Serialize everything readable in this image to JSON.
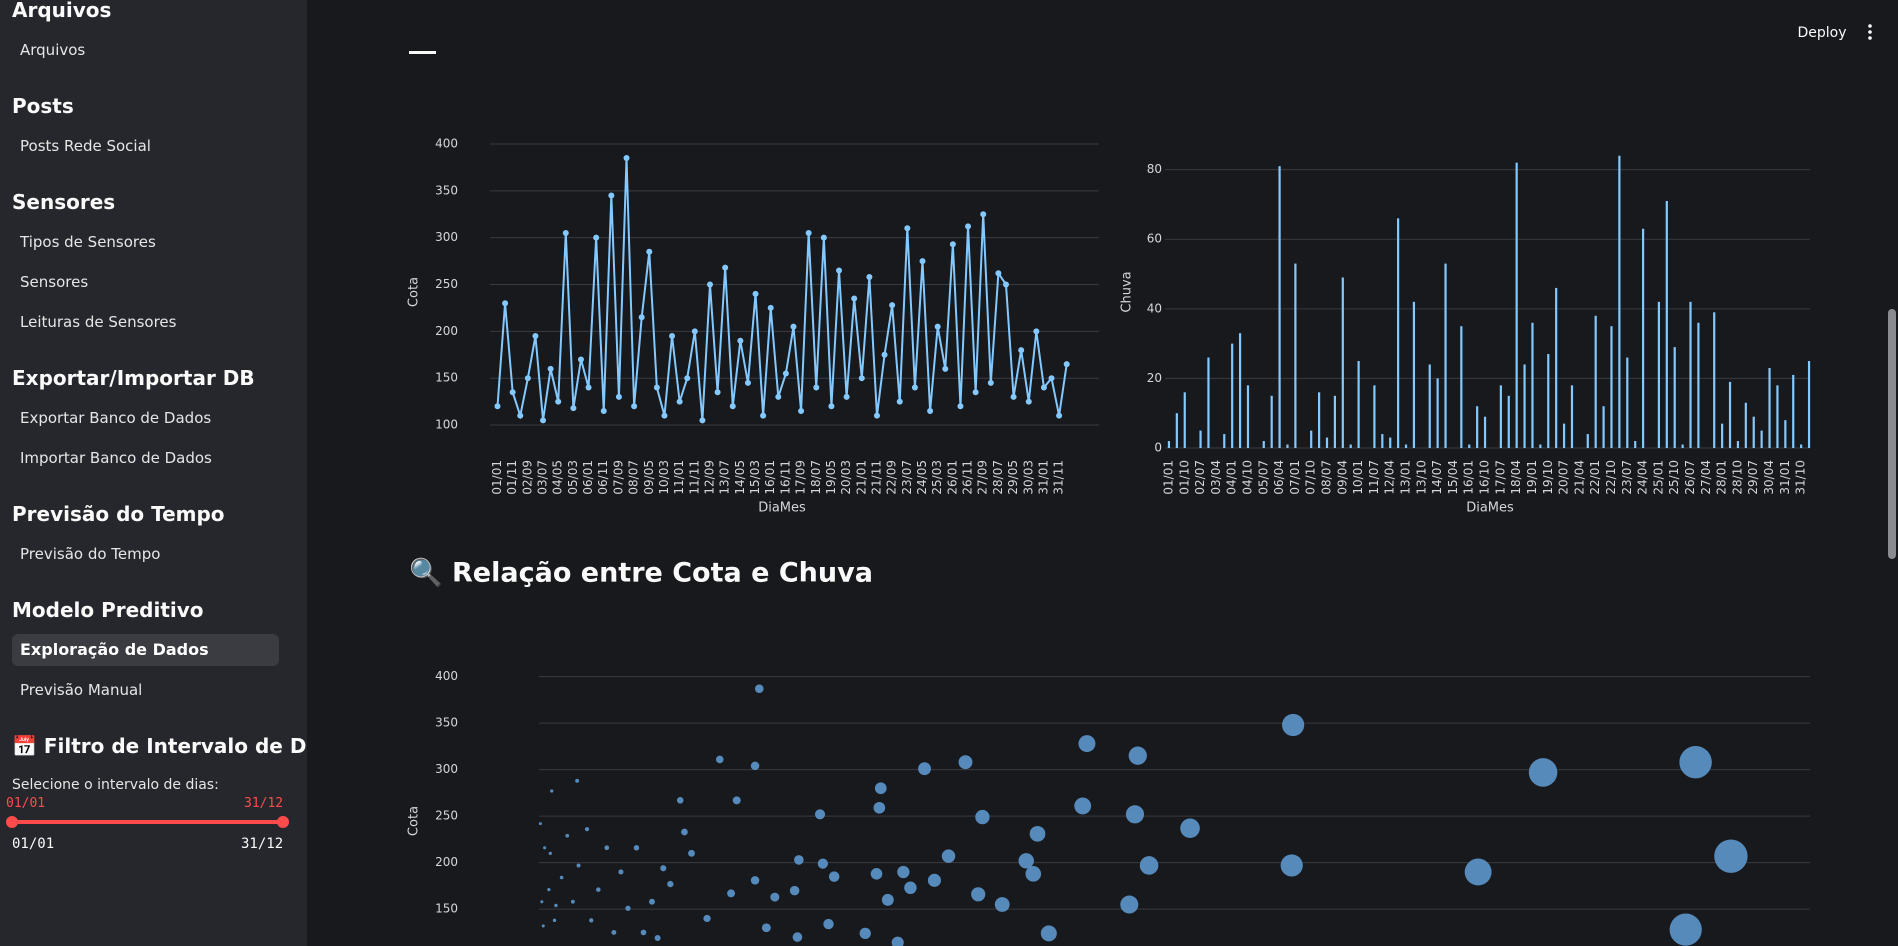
{
  "sidebar": {
    "groups": [
      {
        "title": "Arquivos",
        "items": [
          {
            "label": "Arquivos"
          }
        ]
      },
      {
        "title": "Posts",
        "items": [
          {
            "label": "Posts Rede Social"
          }
        ]
      },
      {
        "title": "Sensores",
        "items": [
          {
            "label": "Tipos de Sensores"
          },
          {
            "label": "Sensores"
          },
          {
            "label": "Leituras de Sensores"
          }
        ]
      },
      {
        "title": "Exportar/Importar DB",
        "items": [
          {
            "label": "Exportar Banco de Dados"
          },
          {
            "label": "Importar Banco de Dados"
          }
        ]
      },
      {
        "title": "Previsão do Tempo",
        "items": [
          {
            "label": "Previsão do Tempo"
          }
        ]
      },
      {
        "title": "Modelo Preditivo",
        "items": [
          {
            "label": "Exploração de Dados",
            "selected": true
          },
          {
            "label": "Previsão Manual"
          }
        ]
      }
    ],
    "filter": {
      "title": "📅 Filtro de Intervalo de Datas",
      "label": "Selecione o intervalo de dias:",
      "start": "01/01",
      "end": "31/12",
      "min": "01/01",
      "max": "31/12"
    }
  },
  "toolbar": {
    "deploy": "Deploy"
  },
  "chart_data": [
    {
      "type": "line",
      "x_label": "DiaMes",
      "y_label": "Cota",
      "color": "#83c9ff",
      "ylim": [
        90,
        410
      ],
      "yticks": [
        100,
        150,
        200,
        250,
        300,
        350,
        400
      ],
      "grid": true,
      "categories": [
        "01/01",
        null,
        "01/11",
        null,
        "02/09",
        null,
        "03/07",
        null,
        "04/05",
        null,
        "05/03",
        null,
        "06/01",
        null,
        "06/11",
        null,
        "07/09",
        null,
        "08/07",
        null,
        "09/05",
        null,
        "10/03",
        null,
        "11/01",
        null,
        "11/11",
        null,
        "12/09",
        null,
        "13/07",
        null,
        "14/05",
        null,
        "15/03",
        null,
        "16/01",
        null,
        "16/11",
        null,
        "17/09",
        null,
        "18/07",
        null,
        "19/05",
        null,
        "20/03",
        null,
        "21/01",
        null,
        "21/11",
        null,
        "22/09",
        null,
        "23/07",
        null,
        "24/05",
        null,
        "25/03",
        null,
        "26/01",
        null,
        "26/11",
        null,
        "27/09",
        null,
        "28/07",
        null,
        "29/05",
        null,
        "30/03",
        null,
        "31/01",
        null,
        "31/11",
        null
      ],
      "series": [
        {
          "name": "Cota",
          "values": [
            120,
            230,
            135,
            110,
            150,
            195,
            105,
            160,
            125,
            305,
            118,
            170,
            140,
            300,
            115,
            345,
            130,
            385,
            120,
            215,
            285,
            140,
            110,
            195,
            125,
            150,
            200,
            105,
            250,
            135,
            268,
            120,
            190,
            145,
            240,
            110,
            225,
            130,
            155,
            205,
            115,
            305,
            140,
            300,
            120,
            265,
            130,
            235,
            150,
            258,
            110,
            175,
            228,
            125,
            310,
            140,
            275,
            115,
            205,
            160,
            293,
            120,
            312,
            135,
            325,
            145,
            262,
            250,
            130,
            180,
            125,
            200,
            140,
            150,
            110,
            165
          ]
        }
      ]
    },
    {
      "type": "bar",
      "x_label": "DiaMes",
      "y_label": "Chuva",
      "color": "#83c9ff",
      "ylim": [
        0,
        88
      ],
      "yticks": [
        0,
        20,
        40,
        60,
        80
      ],
      "grid": true,
      "categories": [
        "01/01",
        null,
        "01/10",
        null,
        "02/07",
        null,
        "03/04",
        null,
        "04/01",
        null,
        "04/10",
        null,
        "05/07",
        null,
        "06/04",
        null,
        "07/01",
        null,
        "07/10",
        null,
        "08/07",
        null,
        "09/04",
        null,
        "10/01",
        null,
        "11/07",
        null,
        "12/04",
        null,
        "13/01",
        null,
        "13/10",
        null,
        "14/07",
        null,
        "15/04",
        null,
        "16/01",
        null,
        "16/10",
        null,
        "17/07",
        null,
        "18/04",
        null,
        "19/01",
        null,
        "19/10",
        null,
        "20/07",
        null,
        "21/04",
        null,
        "22/01",
        null,
        "22/10",
        null,
        "23/07",
        null,
        "24/04",
        null,
        "25/01",
        null,
        "25/10",
        null,
        "26/07",
        null,
        "27/04",
        null,
        "28/01",
        null,
        "28/10",
        null,
        "29/07",
        null,
        "30/04",
        null,
        "31/01",
        null,
        "31/10",
        null
      ],
      "series": [
        {
          "name": "Chuva",
          "values": [
            2,
            10,
            16,
            0,
            5,
            26,
            0,
            4,
            30,
            33,
            18,
            0,
            2,
            15,
            81,
            1,
            53,
            0,
            5,
            16,
            3,
            15,
            49,
            1,
            25,
            0,
            18,
            4,
            3,
            66,
            1,
            42,
            0,
            24,
            20,
            53,
            0,
            35,
            1,
            12,
            9,
            0,
            18,
            15,
            82,
            24,
            36,
            1,
            27,
            46,
            7,
            18,
            0,
            4,
            38,
            12,
            35,
            84,
            26,
            2,
            63,
            0,
            42,
            71,
            29,
            1,
            42,
            36,
            0,
            39,
            7,
            19,
            2,
            13,
            9,
            5,
            23,
            18,
            8,
            21,
            1,
            25
          ]
        }
      ]
    },
    {
      "type": "scatter",
      "title": "🔍 Relação entre Cota e Chuva",
      "y_label": "Cota",
      "color": "#5b94c9",
      "xlim": [
        0,
        90
      ],
      "ylim": [
        90,
        420
      ],
      "yticks": [
        150,
        200,
        250,
        300,
        350,
        400
      ],
      "grid": true,
      "series": [
        {
          "name": "Cota",
          "x": [
            15.6,
            12.8,
            15.3,
            14,
            10,
            2.7,
            0.9,
            19.9,
            24.2,
            24.1,
            27.3,
            30.2,
            31.4,
            35.3,
            38.8,
            42.4,
            38.5,
            42.2,
            46.1,
            53.4,
            53.3,
            43.2,
            34.5,
            35,
            41.8,
            36.1,
            29,
            28,
            31.1,
            32.8,
            25.8,
            26.3,
            23.9,
            24.7,
            25.4,
            23.1,
            66.5,
            71.1,
            81.9,
            84.4,
            81.2,
            20.9,
            20.5,
            18.4,
            20.1,
            16.7,
            13.6,
            11.9,
            10.3,
            10.8,
            8.8,
            15.3,
            18.1,
            18.3,
            16.1,
            0.1,
            0.4,
            0.7,
            1.1,
            1.6,
            2,
            2.4,
            2.8,
            3.4,
            3.7,
            4.2,
            4.8,
            5.3,
            5.8,
            6.3,
            6.9,
            7.4,
            8,
            8.4,
            9.3,
            0.3,
            0.2,
            0.8,
            1.2
          ],
          "values": [
            387,
            311,
            304,
            267,
            267,
            288,
            277,
            252,
            280,
            259,
            301,
            308,
            249,
            231,
            328,
            315,
            261,
            252,
            237,
            348,
            197,
            197,
            202,
            188,
            155,
            124,
            207,
            181,
            166,
            155,
            190,
            173,
            188,
            160,
            114,
            124,
            190,
            297,
            308,
            207,
            128,
            185,
            134,
            203,
            199,
            163,
            167,
            140,
            233,
            210,
            194,
            181,
            170,
            120,
            130,
            242,
            216,
            171,
            138,
            184,
            229,
            158,
            197,
            236,
            138,
            171,
            216,
            125,
            190,
            151,
            216,
            125,
            158,
            119,
            177,
            132,
            158,
            210,
            154
          ]
        }
      ]
    }
  ]
}
